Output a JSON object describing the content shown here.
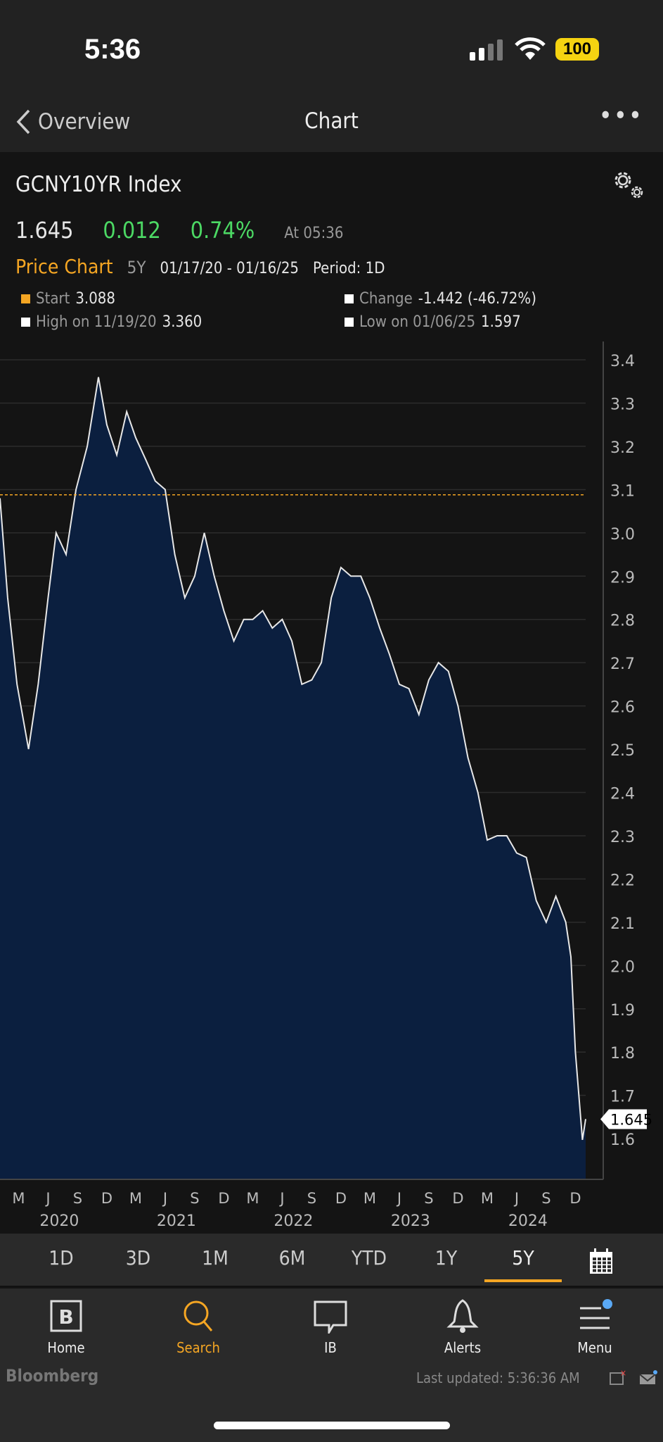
{
  "status": {
    "time": "5:36",
    "battery": "100"
  },
  "nav": {
    "back_label": "Overview",
    "title": "Chart",
    "more": "•••"
  },
  "header": {
    "ticker": "GCNY10YR Index",
    "price": "1.645",
    "change": "0.012",
    "change_pct": "0.74%",
    "at": "At 05:36",
    "chart_label": "Price Chart",
    "range": "5Y",
    "dates": "01/17/20 - 01/16/25",
    "period": "Period: 1D"
  },
  "legend": {
    "start_label": "Start",
    "start_value": "3.088",
    "high_label": "High on 11/19/20",
    "high_value": "3.360",
    "change_label": "Change",
    "change_value": "-1.442 (-46.72%)",
    "low_label": "Low on 01/06/25",
    "low_value": "1.597"
  },
  "colors": {
    "accent": "#f5a623",
    "positive": "#4cd964",
    "fill": "#0b1f3f",
    "line": "#e8e8e8"
  },
  "range_tabs": [
    "1D",
    "3D",
    "1M",
    "6M",
    "YTD",
    "1Y",
    "5Y"
  ],
  "range_selected": "5Y",
  "tabbar": [
    {
      "label": "Home",
      "icon": "bloomberg-b-icon"
    },
    {
      "label": "Search",
      "icon": "search-icon",
      "active": true
    },
    {
      "label": "IB",
      "icon": "chat-icon"
    },
    {
      "label": "Alerts",
      "icon": "bell-icon"
    },
    {
      "label": "Menu",
      "icon": "menu-icon"
    }
  ],
  "footer": {
    "brand": "Bloomberg",
    "updated": "Last updated: 5:36:36 AM"
  },
  "chart_data": {
    "type": "area",
    "ylim": [
      1.5,
      3.45
    ],
    "yticks": [
      "3.4",
      "3.3",
      "3.2",
      "3.1",
      "3.0",
      "2.9",
      "2.8",
      "2.7",
      "2.6",
      "2.5",
      "2.4",
      "2.3",
      "2.2",
      "2.1",
      "2.0",
      "1.9",
      "1.8",
      "1.7",
      "1.6"
    ],
    "xrange": [
      "2020-01-17",
      "2025-01-16"
    ],
    "xticks": [
      {
        "label": "M",
        "date": "2020-03-15"
      },
      {
        "label": "J",
        "date": "2020-06-15"
      },
      {
        "label": "S",
        "date": "2020-09-15"
      },
      {
        "label": "D",
        "date": "2020-12-15"
      },
      {
        "label": "M",
        "date": "2021-03-15"
      },
      {
        "label": "J",
        "date": "2021-06-15"
      },
      {
        "label": "S",
        "date": "2021-09-15"
      },
      {
        "label": "D",
        "date": "2021-12-15"
      },
      {
        "label": "M",
        "date": "2022-03-15"
      },
      {
        "label": "J",
        "date": "2022-06-15"
      },
      {
        "label": "S",
        "date": "2022-09-15"
      },
      {
        "label": "D",
        "date": "2022-12-15"
      },
      {
        "label": "M",
        "date": "2023-03-15"
      },
      {
        "label": "J",
        "date": "2023-06-15"
      },
      {
        "label": "S",
        "date": "2023-09-15"
      },
      {
        "label": "D",
        "date": "2023-12-15"
      },
      {
        "label": "M",
        "date": "2024-03-15"
      },
      {
        "label": "J",
        "date": "2024-06-15"
      },
      {
        "label": "S",
        "date": "2024-09-15"
      },
      {
        "label": "D",
        "date": "2024-12-15"
      }
    ],
    "years": [
      {
        "label": "2020",
        "date": "2020-07-20"
      },
      {
        "label": "2021",
        "date": "2021-07-20"
      },
      {
        "label": "2022",
        "date": "2022-07-20"
      },
      {
        "label": "2023",
        "date": "2023-07-20"
      },
      {
        "label": "2024",
        "date": "2024-07-20"
      }
    ],
    "start_line": 3.088,
    "last_value": "1.645",
    "points": [
      [
        "2020-01-17",
        3.08
      ],
      [
        "2020-02-10",
        2.85
      ],
      [
        "2020-03-10",
        2.65
      ],
      [
        "2020-04-15",
        2.5
      ],
      [
        "2020-05-15",
        2.65
      ],
      [
        "2020-06-15",
        2.85
      ],
      [
        "2020-07-10",
        3.0
      ],
      [
        "2020-08-10",
        2.95
      ],
      [
        "2020-09-10",
        3.1
      ],
      [
        "2020-10-15",
        3.2
      ],
      [
        "2020-11-19",
        3.36
      ],
      [
        "2020-12-15",
        3.25
      ],
      [
        "2021-01-15",
        3.18
      ],
      [
        "2021-02-15",
        3.28
      ],
      [
        "2021-03-15",
        3.22
      ],
      [
        "2021-04-15",
        3.17
      ],
      [
        "2021-05-15",
        3.12
      ],
      [
        "2021-06-15",
        3.1
      ],
      [
        "2021-07-15",
        2.95
      ],
      [
        "2021-08-15",
        2.85
      ],
      [
        "2021-09-15",
        2.9
      ],
      [
        "2021-10-15",
        3.0
      ],
      [
        "2021-11-15",
        2.9
      ],
      [
        "2021-12-15",
        2.82
      ],
      [
        "2022-01-15",
        2.75
      ],
      [
        "2022-02-15",
        2.8
      ],
      [
        "2022-03-15",
        2.8
      ],
      [
        "2022-04-15",
        2.82
      ],
      [
        "2022-05-15",
        2.78
      ],
      [
        "2022-06-15",
        2.8
      ],
      [
        "2022-07-15",
        2.75
      ],
      [
        "2022-08-15",
        2.65
      ],
      [
        "2022-09-15",
        2.66
      ],
      [
        "2022-10-15",
        2.7
      ],
      [
        "2022-11-15",
        2.85
      ],
      [
        "2022-12-15",
        2.92
      ],
      [
        "2023-01-15",
        2.9
      ],
      [
        "2023-02-15",
        2.9
      ],
      [
        "2023-03-15",
        2.85
      ],
      [
        "2023-04-15",
        2.78
      ],
      [
        "2023-05-15",
        2.72
      ],
      [
        "2023-06-15",
        2.65
      ],
      [
        "2023-07-15",
        2.64
      ],
      [
        "2023-08-15",
        2.58
      ],
      [
        "2023-09-15",
        2.66
      ],
      [
        "2023-10-15",
        2.7
      ],
      [
        "2023-11-15",
        2.68
      ],
      [
        "2023-12-15",
        2.6
      ],
      [
        "2024-01-15",
        2.48
      ],
      [
        "2024-02-15",
        2.4
      ],
      [
        "2024-03-15",
        2.29
      ],
      [
        "2024-04-15",
        2.3
      ],
      [
        "2024-05-15",
        2.3
      ],
      [
        "2024-06-15",
        2.26
      ],
      [
        "2024-07-15",
        2.25
      ],
      [
        "2024-08-15",
        2.15
      ],
      [
        "2024-09-15",
        2.1
      ],
      [
        "2024-10-15",
        2.16
      ],
      [
        "2024-11-15",
        2.1
      ],
      [
        "2024-12-01",
        2.02
      ],
      [
        "2024-12-15",
        1.8
      ],
      [
        "2025-01-06",
        1.597
      ],
      [
        "2025-01-16",
        1.645
      ]
    ]
  }
}
